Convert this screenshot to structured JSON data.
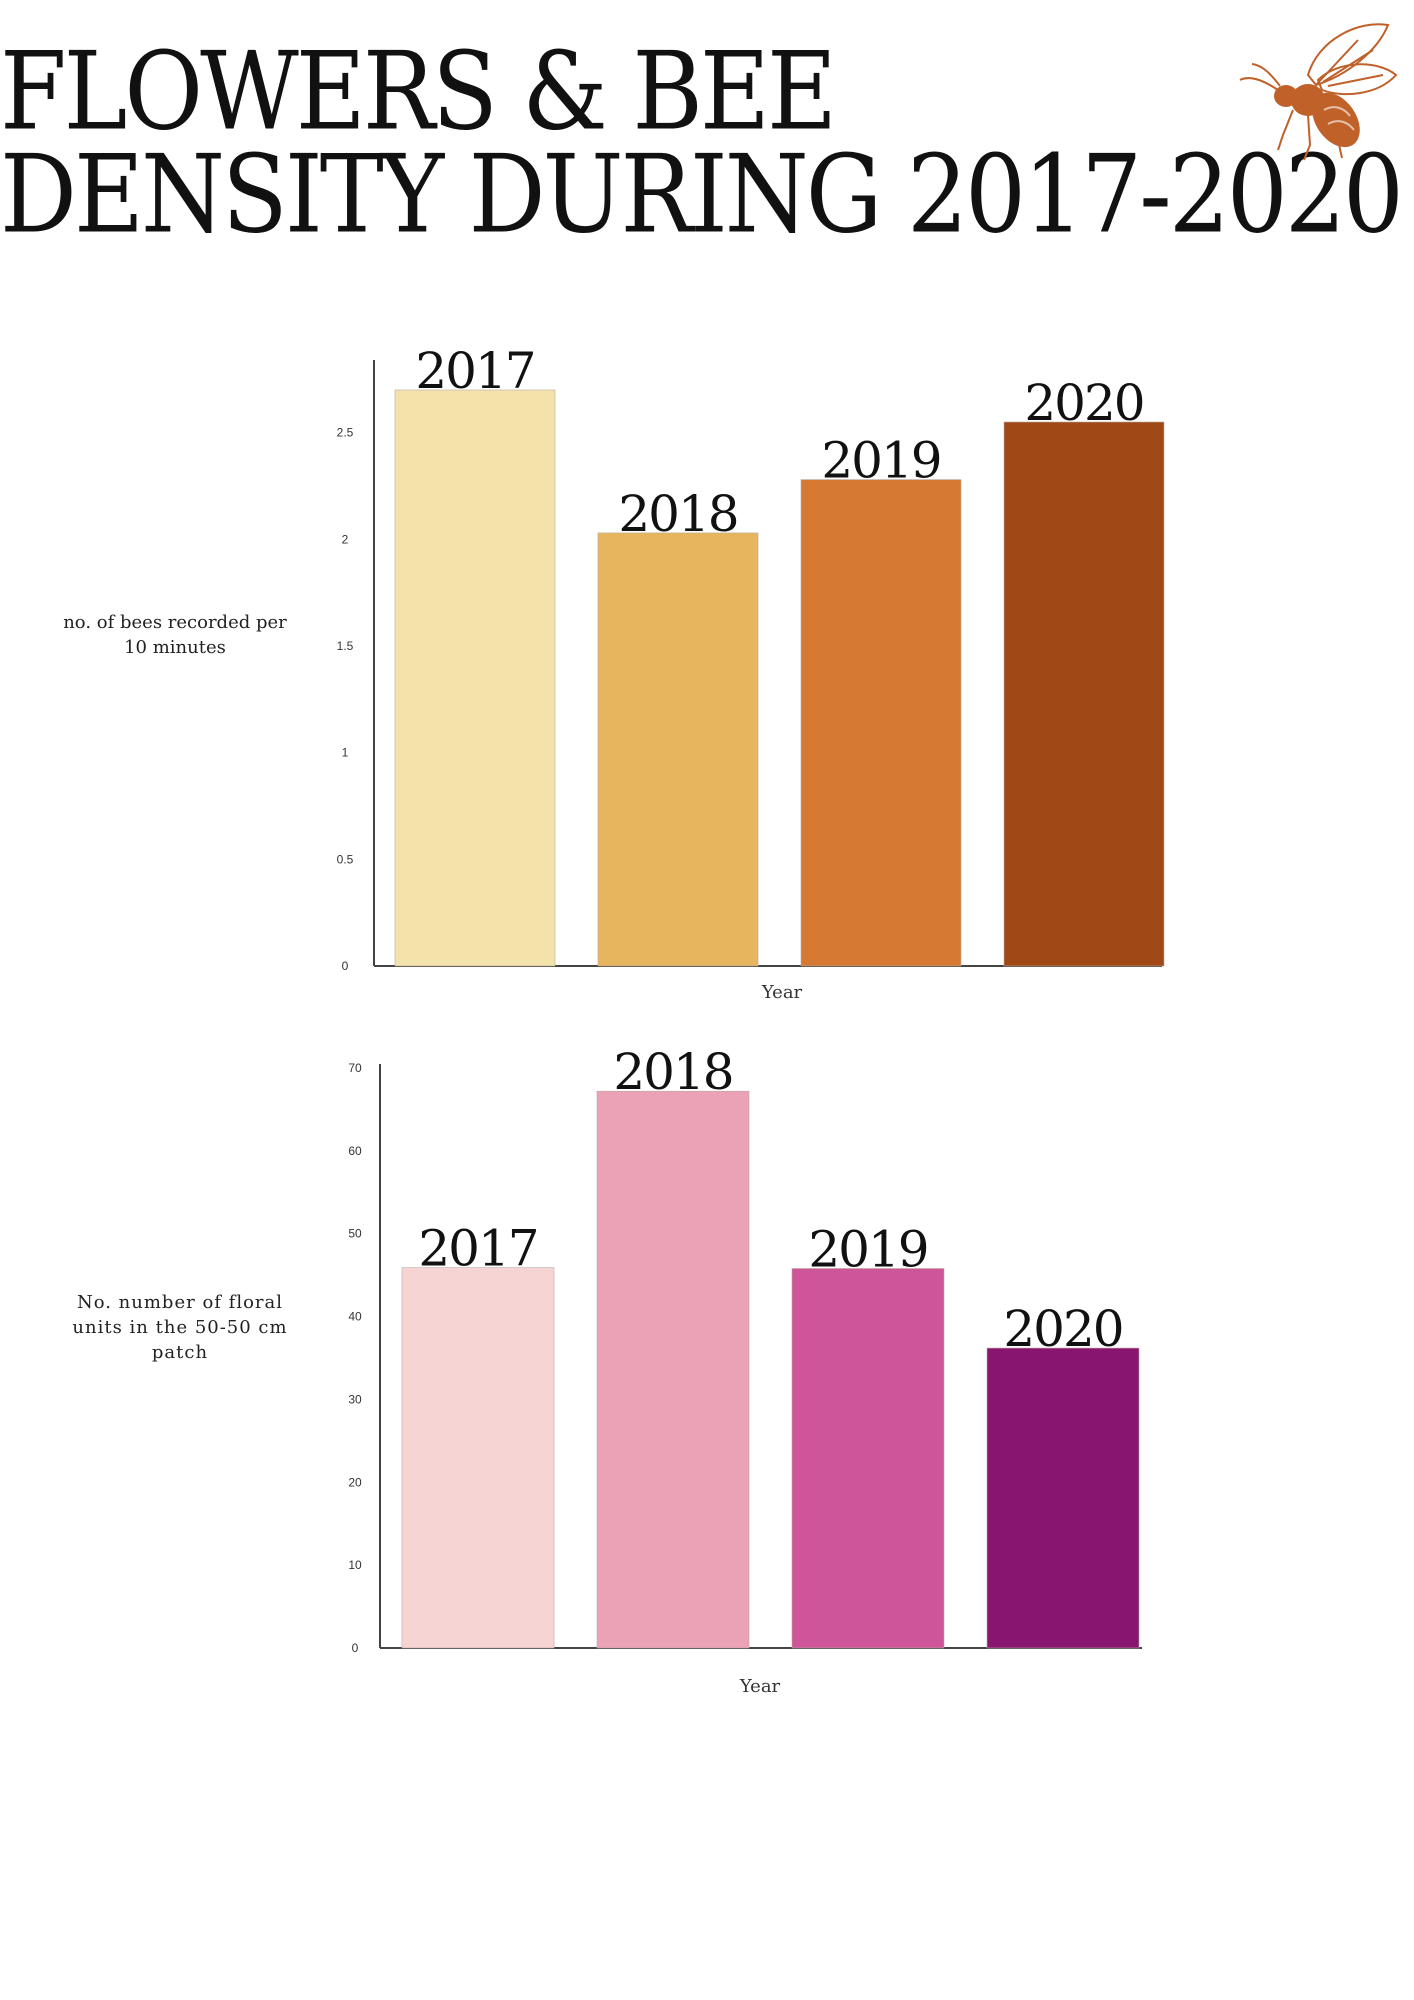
{
  "title": {
    "line1": "FLOWERS & BEE",
    "line2": "DENSITY DURING 2017-2020"
  },
  "logo": {
    "icon": "bee-icon",
    "color": "#C0612A"
  },
  "chart_data": [
    {
      "type": "bar",
      "categories": [
        "2017",
        "2018",
        "2019",
        "2020"
      ],
      "values": [
        2.7,
        2.03,
        2.28,
        2.55
      ],
      "bar_labels": [
        "2017",
        "2018",
        "2019",
        "2020"
      ],
      "colors": [
        "#F3E3AB",
        "#E6B55E",
        "#D67A33",
        "#A04916"
      ],
      "xlabel": "Year",
      "ylabel": "no. of bees recorded per 10 minutes",
      "ylim": [
        0,
        2.85
      ],
      "yticks": [
        0,
        0.5,
        1,
        1.5,
        2,
        2.5
      ],
      "ytick_labels": [
        "0",
        "0.5",
        "1",
        "1.5",
        "2",
        "2.5"
      ],
      "grid": false,
      "legend": "none"
    },
    {
      "type": "bar",
      "categories": [
        "2017",
        "2018",
        "2019",
        "2020"
      ],
      "values": [
        45.9,
        67.2,
        45.8,
        36.2
      ],
      "bar_labels": [
        "2017",
        "2018",
        "2019",
        "2020"
      ],
      "colors": [
        "#F7D4D4",
        "#ECA2B6",
        "#CF5599",
        "#88156F"
      ],
      "xlabel": "Year",
      "ylabel": "No. number of floral units in the 50-50 cm patch",
      "ylim": [
        0,
        70
      ],
      "yticks": [
        0,
        10,
        20,
        30,
        40,
        50,
        60,
        70
      ],
      "ytick_labels": [
        "0",
        "10",
        "20",
        "30",
        "40",
        "50",
        "60",
        "70"
      ],
      "grid": false,
      "legend": "none"
    }
  ]
}
